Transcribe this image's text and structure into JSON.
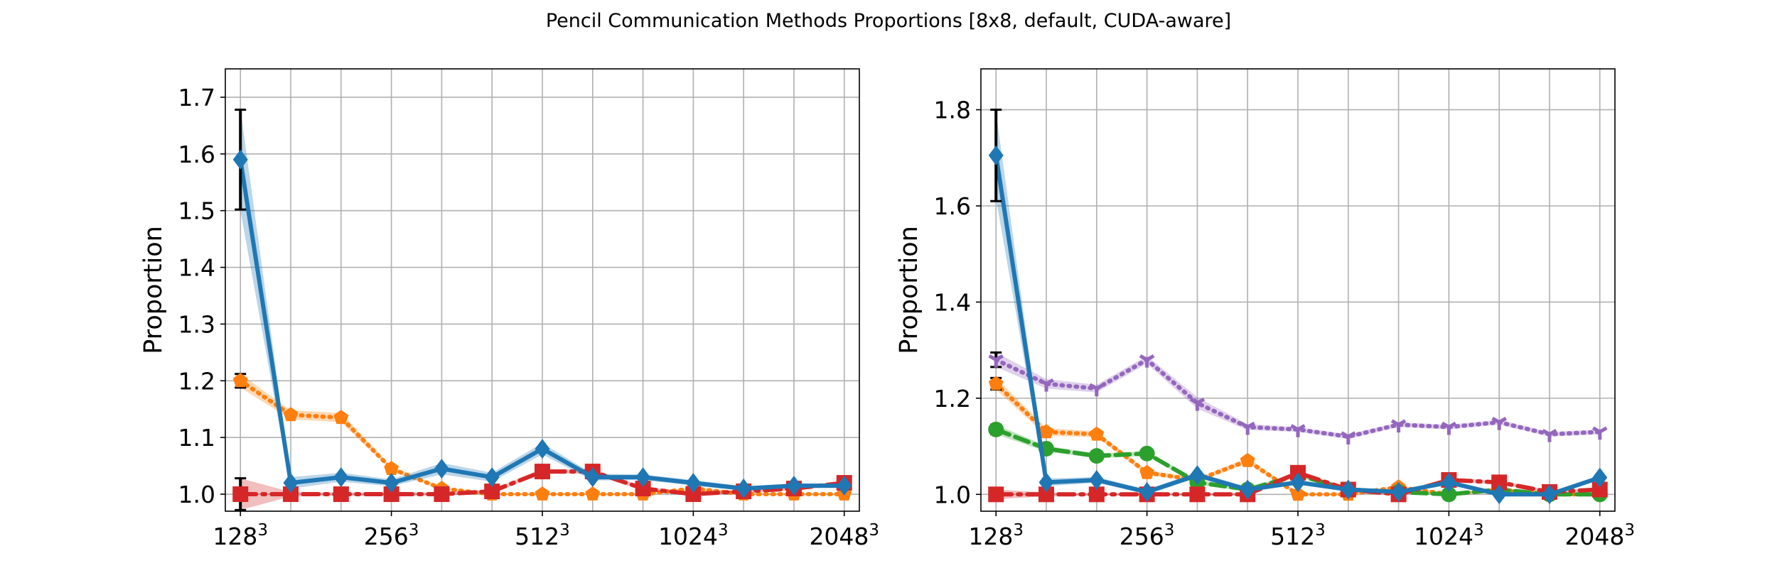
{
  "chart_data": {
    "title": "Pencil Communication Methods Proportions [8x8, default, CUDA-aware]",
    "colors": {
      "blue": "#1f77b4",
      "orange": "#ff7f0e",
      "green": "#2ca02c",
      "red": "#d62728",
      "purple": "#9467bd"
    },
    "panels": [
      {
        "type": "line",
        "ylabel": "Proportion",
        "xlim": [
          0.7,
          13.3
        ],
        "ylim": [
          0.97,
          1.75
        ],
        "x_ticks": [
          {
            "x": 1,
            "base": "128",
            "exp": "3"
          },
          {
            "x": 4,
            "base": "256",
            "exp": "3"
          },
          {
            "x": 7,
            "base": "512",
            "exp": "3"
          },
          {
            "x": 10,
            "base": "1024",
            "exp": "3"
          },
          {
            "x": 13,
            "base": "2048",
            "exp": "3"
          }
        ],
        "x_grid": [
          1,
          2,
          3,
          4,
          5,
          6,
          7,
          8,
          9,
          10,
          11,
          12,
          13
        ],
        "y_ticks": [
          {
            "v": 1.0,
            "label": "1.0"
          },
          {
            "v": 1.1,
            "label": "1.1"
          },
          {
            "v": 1.2,
            "label": "1.2"
          },
          {
            "v": 1.3,
            "label": "1.3"
          },
          {
            "v": 1.4,
            "label": "1.4"
          },
          {
            "v": 1.5,
            "label": "1.5"
          },
          {
            "v": 1.6,
            "label": "1.6"
          },
          {
            "v": 1.7,
            "label": "1.7"
          }
        ],
        "grid": true,
        "series": [
          {
            "color": "orange",
            "dash": "dotted",
            "marker": "pentagon",
            "x": [
              1,
              2,
              3,
              4,
              5,
              6,
              7,
              8,
              9,
              10,
              11,
              12,
              13
            ],
            "values": [
              1.2,
              1.14,
              1.135,
              1.045,
              1.01,
              1.0,
              1.0,
              1.0,
              1.0,
              1.01,
              1.0,
              1.0,
              1.0
            ],
            "band": [
              0.012,
              0.008,
              0.008,
              0.004,
              0.003,
              0.002,
              0.002,
              0.002,
              0.002,
              0.003,
              0.002,
              0.002,
              0.002
            ],
            "err": [
              0.012,
              0.0,
              0.0,
              0.0,
              0.0,
              0.0,
              0.0,
              0.0,
              0.0,
              0.0,
              0.0,
              0.0,
              0.0
            ]
          },
          {
            "color": "red",
            "dash": "dashdot",
            "marker": "square",
            "x": [
              1,
              2,
              3,
              4,
              5,
              6,
              7,
              8,
              9,
              10,
              11,
              12,
              13
            ],
            "values": [
              1.0,
              1.0,
              1.0,
              1.0,
              1.0,
              1.005,
              1.04,
              1.04,
              1.01,
              1.0,
              1.005,
              1.01,
              1.02
            ],
            "band": [
              0.028,
              0.004,
              0.003,
              0.003,
              0.003,
              0.004,
              0.004,
              0.004,
              0.004,
              0.003,
              0.003,
              0.003,
              0.004
            ],
            "err": [
              0.028,
              0.0,
              0.0,
              0.0,
              0.0,
              0.0,
              0.0,
              0.0,
              0.0,
              0.0,
              0.0,
              0.0,
              0.0
            ]
          },
          {
            "color": "blue",
            "dash": "solid",
            "marker": "diamond",
            "x": [
              1,
              2,
              3,
              4,
              5,
              6,
              7,
              8,
              9,
              10,
              11,
              12,
              13
            ],
            "values": [
              1.59,
              1.02,
              1.03,
              1.02,
              1.045,
              1.03,
              1.08,
              1.03,
              1.03,
              1.02,
              1.01,
              1.015,
              1.015
            ],
            "band": [
              0.09,
              0.01,
              0.008,
              0.006,
              0.01,
              0.008,
              0.01,
              0.006,
              0.005,
              0.005,
              0.004,
              0.004,
              0.004
            ],
            "err": [
              0.088,
              0.0,
              0.0,
              0.0,
              0.0,
              0.0,
              0.0,
              0.0,
              0.0,
              0.0,
              0.0,
              0.0,
              0.0
            ]
          }
        ]
      },
      {
        "type": "line",
        "ylabel": "Proportion",
        "xlim": [
          0.7,
          13.3
        ],
        "ylim": [
          0.965,
          1.885
        ],
        "x_ticks": [
          {
            "x": 1,
            "base": "128",
            "exp": "3"
          },
          {
            "x": 4,
            "base": "256",
            "exp": "3"
          },
          {
            "x": 7,
            "base": "512",
            "exp": "3"
          },
          {
            "x": 10,
            "base": "1024",
            "exp": "3"
          },
          {
            "x": 13,
            "base": "2048",
            "exp": "3"
          }
        ],
        "x_grid": [
          1,
          2,
          3,
          4,
          5,
          6,
          7,
          8,
          9,
          10,
          11,
          12,
          13
        ],
        "y_ticks": [
          {
            "v": 1.0,
            "label": "1.0"
          },
          {
            "v": 1.2,
            "label": "1.2"
          },
          {
            "v": 1.4,
            "label": "1.4"
          },
          {
            "v": 1.6,
            "label": "1.6"
          },
          {
            "v": 1.8,
            "label": "1.8"
          }
        ],
        "grid": true,
        "series": [
          {
            "color": "purple",
            "dash": "dotted",
            "marker": "tri_down",
            "x": [
              1,
              2,
              3,
              4,
              5,
              6,
              7,
              8,
              9,
              10,
              11,
              12,
              13
            ],
            "values": [
              1.28,
              1.23,
              1.22,
              1.28,
              1.19,
              1.14,
              1.135,
              1.12,
              1.145,
              1.14,
              1.15,
              1.125,
              1.13
            ],
            "band": [
              0.015,
              0.01,
              0.008,
              0.008,
              0.012,
              0.006,
              0.005,
              0.005,
              0.005,
              0.005,
              0.005,
              0.005,
              0.005
            ],
            "err": [
              0.015,
              0.0,
              0.0,
              0.0,
              0.0,
              0.0,
              0.0,
              0.0,
              0.0,
              0.0,
              0.0,
              0.0,
              0.0
            ]
          },
          {
            "color": "orange",
            "dash": "dotted",
            "marker": "pentagon",
            "x": [
              1,
              2,
              3,
              4,
              5,
              6,
              7,
              8,
              9,
              10,
              11,
              12,
              13
            ],
            "values": [
              1.23,
              1.13,
              1.125,
              1.045,
              1.03,
              1.07,
              1.0,
              1.0,
              1.015,
              1.0,
              1.01,
              1.0,
              1.0
            ],
            "band": [
              0.012,
              0.008,
              0.006,
              0.005,
              0.004,
              0.006,
              0.003,
              0.003,
              0.003,
              0.003,
              0.003,
              0.003,
              0.003
            ],
            "err": [
              0.012,
              0.0,
              0.0,
              0.0,
              0.0,
              0.0,
              0.0,
              0.0,
              0.0,
              0.0,
              0.0,
              0.0,
              0.0
            ]
          },
          {
            "color": "green",
            "dash": "dashed",
            "marker": "circle",
            "x": [
              1,
              2,
              3,
              4,
              5,
              6,
              7,
              8,
              9,
              10,
              11,
              12,
              13
            ],
            "values": [
              1.135,
              1.095,
              1.08,
              1.085,
              1.025,
              1.01,
              1.04,
              1.01,
              1.005,
              1.0,
              1.01,
              1.0,
              1.0
            ],
            "band": [
              0.01,
              0.006,
              0.005,
              0.005,
              0.005,
              0.004,
              0.004,
              0.003,
              0.003,
              0.003,
              0.003,
              0.003,
              0.003
            ],
            "err": [
              0.01,
              0.0,
              0.0,
              0.0,
              0.0,
              0.0,
              0.0,
              0.0,
              0.0,
              0.0,
              0.0,
              0.0,
              0.0
            ]
          },
          {
            "color": "red",
            "dash": "dashdot",
            "marker": "square",
            "x": [
              1,
              2,
              3,
              4,
              5,
              6,
              7,
              8,
              9,
              10,
              11,
              12,
              13
            ],
            "values": [
              1.0,
              1.0,
              1.0,
              1.0,
              1.0,
              1.0,
              1.045,
              1.01,
              1.0,
              1.03,
              1.025,
              1.005,
              1.01
            ],
            "band": [
              0.01,
              0.004,
              0.003,
              0.003,
              0.003,
              0.003,
              0.004,
              0.003,
              0.003,
              0.004,
              0.004,
              0.003,
              0.003
            ],
            "err": [
              0.0,
              0.0,
              0.0,
              0.0,
              0.0,
              0.0,
              0.0,
              0.0,
              0.0,
              0.0,
              0.0,
              0.0,
              0.0
            ]
          },
          {
            "color": "blue",
            "dash": "solid",
            "marker": "diamond",
            "x": [
              1,
              2,
              3,
              4,
              5,
              6,
              7,
              8,
              9,
              10,
              11,
              12,
              13
            ],
            "values": [
              1.705,
              1.025,
              1.03,
              1.005,
              1.04,
              1.01,
              1.025,
              1.01,
              1.005,
              1.025,
              1.0,
              1.0,
              1.035
            ],
            "band": [
              0.09,
              0.008,
              0.006,
              0.005,
              0.006,
              0.005,
              0.005,
              0.004,
              0.004,
              0.005,
              0.003,
              0.003,
              0.004
            ],
            "err": [
              0.095,
              0.0,
              0.0,
              0.0,
              0.0,
              0.0,
              0.0,
              0.0,
              0.0,
              0.0,
              0.0,
              0.0,
              0.0
            ]
          }
        ]
      }
    ]
  }
}
